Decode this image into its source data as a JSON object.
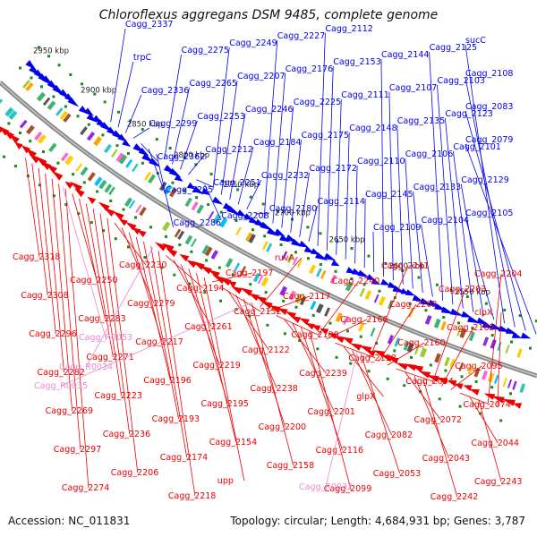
{
  "title": "Chloroflexus aggregans DSM 9485, complete genome",
  "footer": {
    "accession": "Accession: NC_011831",
    "summary": "Topology: circular; Length: 4,684,931 bp; Genes: 3,787"
  },
  "colors": {
    "forward_strand": "#0000ee",
    "reverse_strand": "#ee0000",
    "rna_label": "#ee88cc",
    "backbone": "#8a8a8a",
    "tick_marker": "#1a8a1a"
  },
  "scale_ticks": [
    "2950 kbp",
    "2900 kbp",
    "2850 kbp",
    "2800 kbp",
    "2750 kbp",
    "2700 kbp",
    "2650 kbp",
    "2600 kbp",
    "2550 kbp"
  ],
  "labels_forward": [
    "Cagg_2337",
    "trpC",
    "Cagg_2336",
    "Cagg_2299",
    "Cagg_2362",
    "Cagg_2295",
    "Cagg_2286",
    "Cagg_2275",
    "Cagg_2265",
    "Cagg_2253",
    "Cagg_2212",
    "Cagg_2251",
    "Cagg_2208",
    "Cagg_2249",
    "Cagg_2207",
    "Cagg_2246",
    "Cagg_2184",
    "Cagg_2232",
    "Cagg_2180",
    "Cagg_2227",
    "Cagg_2176",
    "Cagg_2225",
    "Cagg_2175",
    "Cagg_2172",
    "Cagg_2114",
    "Cagg_2112",
    "Cagg_2153",
    "Cagg_2111",
    "Cagg_2148",
    "Cagg_2110",
    "Cagg_2145",
    "Cagg_2109",
    "Cagg_2144",
    "Cagg_2107",
    "Cagg_2135",
    "Cagg_2106",
    "Cagg_2133",
    "Cagg_2104",
    "Cagg_2125",
    "Cagg_2103",
    "Cagg_2123",
    "Cagg_2101",
    "Cagg_2129",
    "Cagg_2105",
    "sucC",
    "Cagg_2108",
    "Cagg_2083",
    "Cagg_2079"
  ],
  "labels_reverse": [
    "Cagg_2318",
    "Cagg_2308",
    "Cagg_2296",
    "Cagg_2282",
    "Cagg_2269",
    "Cagg_2297",
    "Cagg_2274",
    "Cagg_2250",
    "Cagg_2283",
    "Cagg_2271",
    "Cagg_2223",
    "Cagg_2236",
    "Cagg_2206",
    "Cagg_2230",
    "Cagg_2279",
    "Cagg_2217",
    "Cagg_2196",
    "Cagg_2193",
    "Cagg_2174",
    "Cagg_2218",
    "Cagg_2194",
    "Cagg_2261",
    "Cagg_2219",
    "Cagg_2195",
    "Cagg_2154",
    "upp",
    "Cagg_2197",
    "Cagg_2152",
    "Cagg_2122",
    "Cagg_2238",
    "Cagg_2200",
    "Cagg_2158",
    "ruvA",
    "Cagg_2117",
    "Cagg_2100",
    "Cagg_2239",
    "Cagg_2201",
    "Cagg_2116",
    "Cagg_2099",
    "Cagg_2240",
    "Cagg_2166",
    "Cagg_2138",
    "glpX",
    "Cagg_2082",
    "Cagg_2053",
    "Cagg_2241",
    "Cagg_2202",
    "Cagg_2160",
    "Cagg_2094",
    "Cagg_2072",
    "Cagg_2043",
    "Cagg_2242",
    "Cagg_2203",
    "Cagg_2162",
    "Cagg_2095",
    "Cagg_2074",
    "Cagg_2044",
    "Cagg_2243",
    "Cagg_2204",
    "clpX"
  ],
  "labels_rna": [
    "Cagg_R0053",
    "Cagg_R0034",
    "Cagg_R0035",
    "Cagg_R0032"
  ]
}
